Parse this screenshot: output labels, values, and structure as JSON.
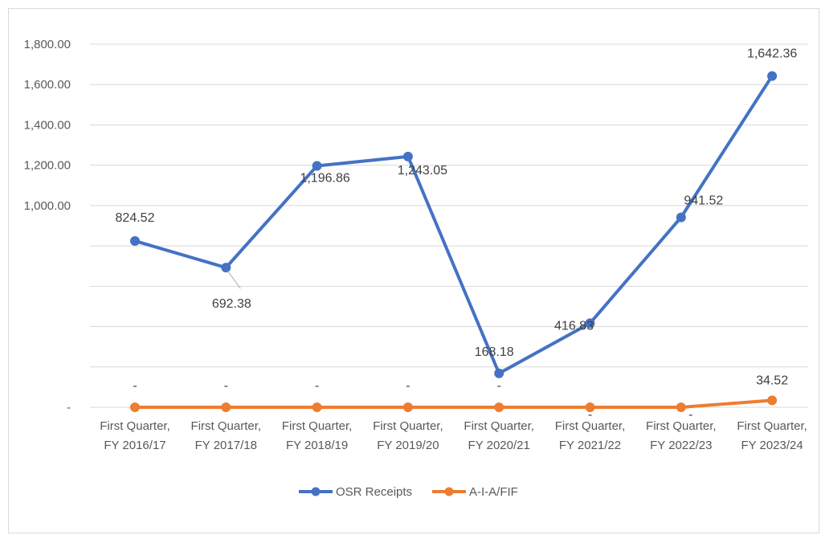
{
  "chart_data": {
    "type": "line",
    "categories": [
      [
        "First Quarter,",
        "FY 2016/17"
      ],
      [
        "First Quarter,",
        "FY 2017/18"
      ],
      [
        "First Quarter,",
        "FY 2018/19"
      ],
      [
        "First Quarter,",
        "FY 2019/20"
      ],
      [
        "First Quarter,",
        "FY 2020/21"
      ],
      [
        "First Quarter,",
        "FY 2021/22"
      ],
      [
        "First Quarter,",
        "FY 2022/23"
      ],
      [
        "First Quarter,",
        "FY 2023/24"
      ]
    ],
    "y_tick_labels": [
      "-",
      "",
      "",
      "",
      "",
      "1,000.00",
      "1,200.00",
      "1,400.00",
      "1,600.00",
      "1,800.00"
    ],
    "ylim": [
      0,
      1800
    ],
    "grid": true,
    "legend_position": "bottom",
    "series": [
      {
        "name": "OSR Receipts",
        "color": "#4472c4",
        "values": [
          824.52,
          692.38,
          1196.86,
          1243.05,
          168.18,
          416.83,
          941.52,
          1642.36
        ],
        "labels": [
          "824.52",
          "692.38",
          "1,196.86",
          "1,243.05",
          "168.18",
          "416.83",
          "941.52",
          "1,642.36"
        ]
      },
      {
        "name": "A-I-A/FIF",
        "color": "#ed7d31",
        "values": [
          0,
          0,
          0,
          0,
          0,
          0,
          0,
          34.52
        ],
        "labels": [
          "-",
          "-",
          "-",
          "-",
          "-",
          "-",
          "-",
          "34.52"
        ]
      }
    ]
  }
}
